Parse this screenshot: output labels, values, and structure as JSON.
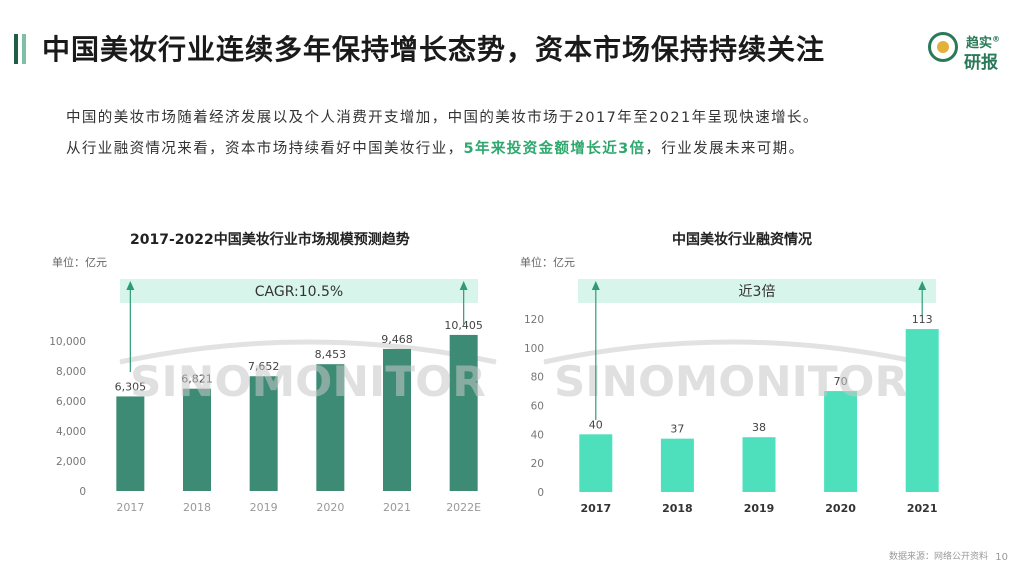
{
  "header": {
    "title": "中国美妆行业连续多年保持增长态势，资本市场保持持续关注",
    "logo_top": "趋实",
    "logo_mark": "®",
    "logo_bottom": "研报"
  },
  "description": {
    "line1": "中国的美妆市场随着经济发展以及个人消费开支增加，中国的美妆市场于2017年至2021年呈现快速增长。",
    "line2_prefix": "从行业融资情况来看，资本市场持续看好中国美妆行业，",
    "line2_highlight": "5年来投资金额增长近3倍",
    "line2_suffix": "，行业发展未来可期。"
  },
  "watermark": "SINOMONITOR",
  "footer": {
    "source": "数据来源：网络公开资料",
    "page": "10"
  },
  "colors": {
    "bar_dark": "#3d8b74",
    "bar_light": "#4ee0bc",
    "band": "#d8f5ec",
    "arrow": "#2e9b78",
    "accent1": "#1e5e45",
    "accent2": "#7fbfa8"
  },
  "chart_data": [
    {
      "type": "bar",
      "title": "2017-2022中国美妆行业市场规模预测趋势",
      "unit": "单位：亿元",
      "categories": [
        "2017",
        "2018",
        "2019",
        "2020",
        "2021",
        "2022E"
      ],
      "values": [
        6305,
        6821,
        7652,
        8453,
        9468,
        10405
      ],
      "value_labels": [
        "6,305",
        "6,821",
        "7,652",
        "8,453",
        "9,468",
        "10,405"
      ],
      "ylim": [
        0,
        10000
      ],
      "yticks": [
        0,
        2000,
        4000,
        6000,
        8000,
        10000
      ],
      "ytick_labels": [
        "0",
        "2,000",
        "4,000",
        "6,000",
        "8,000",
        "10,000"
      ],
      "annotation": "CAGR:10.5%"
    },
    {
      "type": "bar",
      "title": "中国美妆行业融资情况",
      "unit": "单位：亿元",
      "categories": [
        "2017",
        "2018",
        "2019",
        "2020",
        "2021"
      ],
      "values": [
        40,
        37,
        38,
        70,
        113
      ],
      "value_labels": [
        "40",
        "37",
        "38",
        "70",
        "113"
      ],
      "ylim": [
        0,
        120
      ],
      "yticks": [
        0,
        20,
        40,
        60,
        80,
        100,
        120
      ],
      "ytick_labels": [
        "0",
        "20",
        "40",
        "60",
        "80",
        "100",
        "120"
      ],
      "annotation": "近3倍"
    }
  ]
}
